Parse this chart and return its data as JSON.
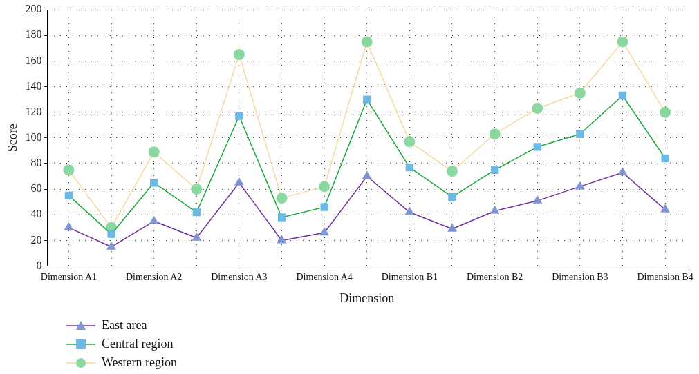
{
  "chart_data": {
    "type": "line",
    "xlabel": "Dimension",
    "ylabel": "Score",
    "categories": [
      "Dimension A1",
      null,
      "Dimension A2",
      null,
      "Dimension A3",
      null,
      "Dimension A4",
      null,
      "Dimension B1",
      null,
      "Dimension B2",
      null,
      "Dimension B3",
      null,
      "Dimension B4"
    ],
    "series": [
      {
        "name": "East area",
        "color": "#7030a0",
        "marker": "triangle",
        "values": [
          30,
          15,
          35,
          22,
          65,
          20,
          26,
          70,
          42,
          29,
          43,
          51,
          62,
          73,
          44
        ]
      },
      {
        "name": "Central region",
        "color": "#1aaa3a",
        "marker": "square",
        "values": [
          55,
          25,
          65,
          42,
          117,
          38,
          46,
          130,
          77,
          54,
          75,
          93,
          103,
          133,
          84
        ]
      },
      {
        "name": "Western region",
        "color": "#f8d8a0",
        "marker": "circle",
        "values": [
          75,
          30,
          89,
          60,
          165,
          53,
          62,
          175,
          97,
          74,
          103,
          123,
          135,
          175,
          120
        ]
      }
    ],
    "ylim": [
      0,
      200
    ],
    "yticks": [
      0,
      20,
      40,
      60,
      80,
      100,
      120,
      140,
      160,
      180,
      200
    ],
    "grid": true,
    "line_style": "solid",
    "legend": "bottom left"
  }
}
